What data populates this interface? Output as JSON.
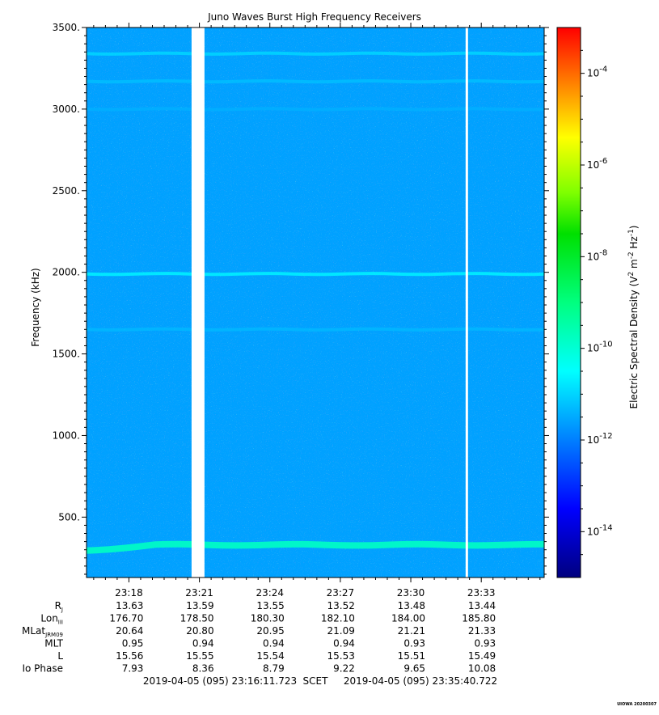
{
  "chart_data": {
    "type": "heatmap",
    "title": "Juno Waves Burst High Frequency Receivers",
    "ylabel": "Frequency (kHz)",
    "ylim": [
      130,
      3500
    ],
    "yticks": [
      "3500.",
      "3000.",
      "2500.",
      "2000.",
      "1500.",
      "1000.",
      "500."
    ],
    "ytick_values": [
      3500,
      3000,
      2500,
      2000,
      1500,
      1000,
      500
    ],
    "xticks": [
      "23:18",
      "23:21",
      "23:24",
      "23:27",
      "23:30",
      "23:33"
    ],
    "colorbar": {
      "label": "Electric Spectral Density (V^2 m^-2 Hz^-1)",
      "scale": "log",
      "range_exp": [
        -15,
        -3
      ],
      "tick_labels": [
        "10-4",
        "10-6",
        "10-8",
        "10-10",
        "10-12",
        "10-14"
      ],
      "tick_exponents": [
        -4,
        -6,
        -8,
        -10,
        -12,
        -14
      ]
    },
    "background_level_exp": -11.6,
    "emission_bands": [
      {
        "freq_khz": 3340,
        "level_exp": -10.9
      },
      {
        "freq_khz": 3170,
        "level_exp": -11.2
      },
      {
        "freq_khz": 3000,
        "level_exp": -11.4
      },
      {
        "freq_khz": 1990,
        "level_exp": -10.5
      },
      {
        "freq_khz": 1650,
        "level_exp": -11.3
      },
      {
        "freq_khz": 330,
        "level_exp": -9.8
      }
    ],
    "data_gaps": [
      {
        "from": "23:20:40",
        "to": "23:21:13"
      },
      {
        "from": "23:32:20",
        "to": "23:32:23"
      }
    ],
    "ephemeris": {
      "rows": [
        {
          "label": "R",
          "sub": "J",
          "values": [
            "13.63",
            "13.59",
            "13.55",
            "13.52",
            "13.48",
            "13.44"
          ]
        },
        {
          "label": "Lon",
          "sub": "III",
          "values": [
            "176.70",
            "178.50",
            "180.30",
            "182.10",
            "184.00",
            "185.80"
          ]
        },
        {
          "label": "MLat",
          "sub": "JRM09",
          "values": [
            "20.64",
            "20.80",
            "20.95",
            "21.09",
            "21.21",
            "21.33"
          ]
        },
        {
          "label": "MLT",
          "sub": "",
          "values": [
            "0.95",
            "0.94",
            "0.94",
            "0.94",
            "0.93",
            "0.93"
          ]
        },
        {
          "label": "L",
          "sub": "",
          "values": [
            "15.56",
            "15.55",
            "15.54",
            "15.53",
            "15.51",
            "15.49"
          ]
        },
        {
          "label": "Io Phase",
          "sub": "",
          "values": [
            "7.93",
            "8.36",
            "8.79",
            "9.22",
            "9.65",
            "10.08"
          ]
        }
      ]
    },
    "time_range": {
      "start": "2019-04-05 (095) 23:16:11.723",
      "mid": "SCET",
      "end": "2019-04-05 (095) 23:35:40.722"
    },
    "credit": "UIOWA 20200307"
  }
}
